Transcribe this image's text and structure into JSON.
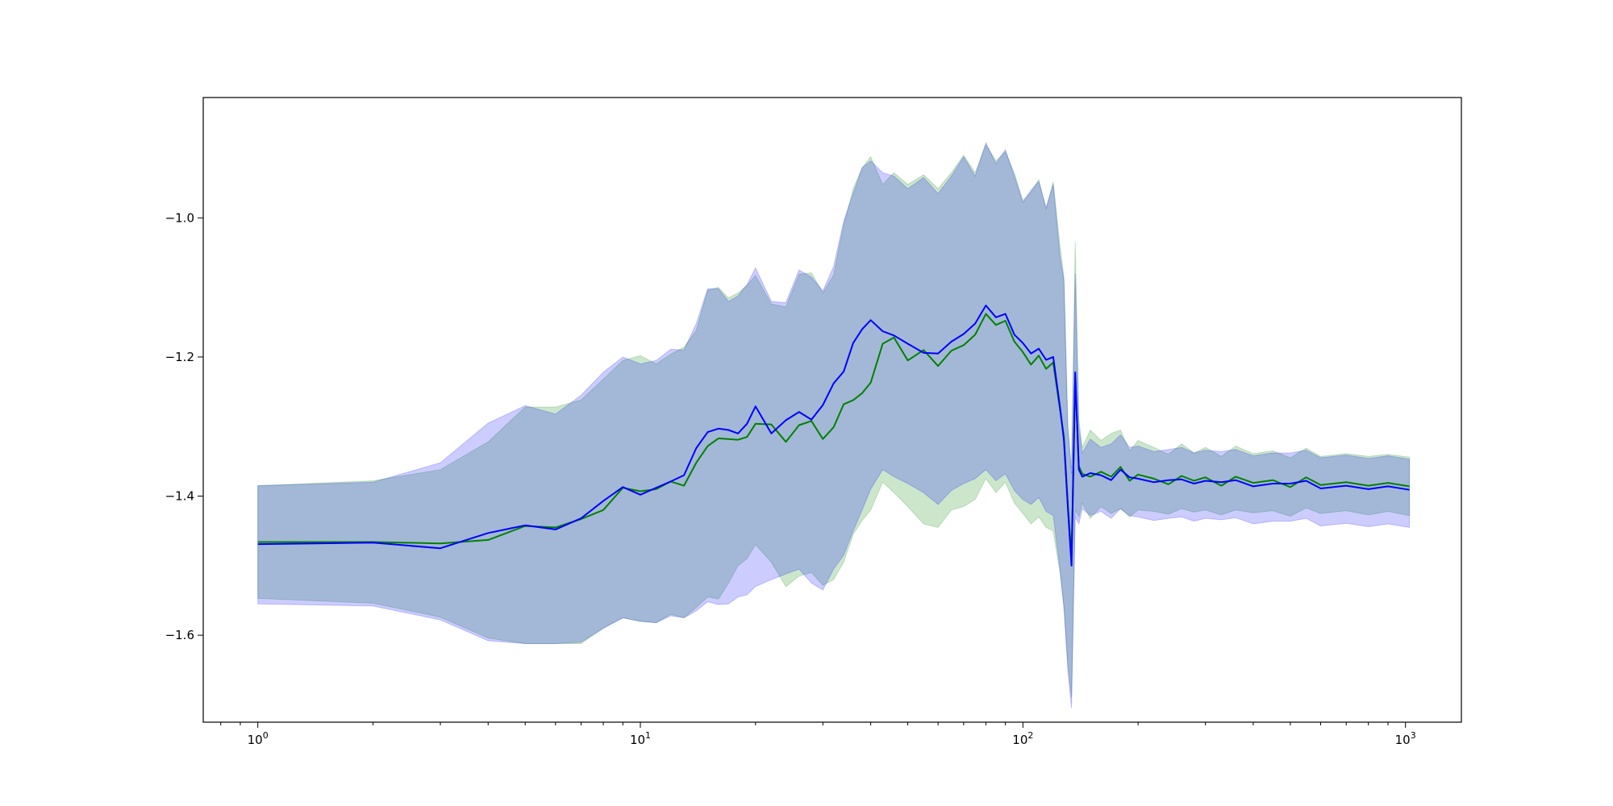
{
  "chart_data": {
    "type": "area",
    "title": "",
    "xlabel": "",
    "ylabel": "",
    "xscale": "log",
    "xlim": [
      0.72,
      1400
    ],
    "ylim": [
      -1.725,
      -0.827
    ],
    "grid": false,
    "legend": "none",
    "x_ticks": [
      {
        "value": 1,
        "base": "10",
        "exp": "0"
      },
      {
        "value": 10,
        "base": "10",
        "exp": "1"
      },
      {
        "value": 100,
        "base": "10",
        "exp": "2"
      },
      {
        "value": 1000,
        "base": "10",
        "exp": "3"
      }
    ],
    "y_ticks": [
      {
        "value": -1.0,
        "label": "−1.0"
      },
      {
        "value": -1.2,
        "label": "−1.2"
      },
      {
        "value": -1.4,
        "label": "−1.4"
      },
      {
        "value": -1.6,
        "label": "−1.6"
      }
    ],
    "series": [
      {
        "color": "#008000",
        "band_color": "#008000",
        "band_opacity": 0.2,
        "x": [
          1,
          2,
          3,
          4,
          5,
          6,
          7,
          8,
          9,
          10,
          11,
          12,
          13,
          14,
          15,
          16,
          17,
          18,
          19,
          20,
          22,
          24,
          26,
          28,
          30,
          32,
          34,
          36,
          38,
          40,
          43,
          46,
          50,
          55,
          60,
          65,
          70,
          75,
          80,
          85,
          90,
          95,
          100,
          105,
          110,
          115,
          120,
          125,
          128,
          131,
          134,
          137,
          140,
          143,
          150,
          160,
          170,
          180,
          190,
          200,
          220,
          240,
          260,
          280,
          300,
          330,
          360,
          400,
          450,
          500,
          550,
          600,
          700,
          800,
          900,
          1024
        ],
        "mean": [
          -1.466,
          -1.466,
          -1.468,
          -1.463,
          -1.443,
          -1.445,
          -1.433,
          -1.42,
          -1.388,
          -1.393,
          -1.39,
          -1.379,
          -1.385,
          -1.352,
          -1.328,
          -1.317,
          -1.318,
          -1.319,
          -1.315,
          -1.296,
          -1.297,
          -1.322,
          -1.298,
          -1.292,
          -1.318,
          -1.301,
          -1.268,
          -1.262,
          -1.252,
          -1.237,
          -1.181,
          -1.172,
          -1.205,
          -1.19,
          -1.213,
          -1.191,
          -1.183,
          -1.168,
          -1.138,
          -1.154,
          -1.148,
          -1.178,
          -1.193,
          -1.211,
          -1.198,
          -1.217,
          -1.208,
          -1.275,
          -1.315,
          -1.412,
          -1.488,
          -1.23,
          -1.357,
          -1.368,
          -1.372,
          -1.365,
          -1.372,
          -1.358,
          -1.378,
          -1.369,
          -1.375,
          -1.383,
          -1.371,
          -1.378,
          -1.373,
          -1.385,
          -1.372,
          -1.381,
          -1.377,
          -1.387,
          -1.373,
          -1.384,
          -1.38,
          -1.385,
          -1.381,
          -1.386
        ],
        "upper": [
          -1.385,
          -1.378,
          -1.362,
          -1.322,
          -1.272,
          -1.272,
          -1.262,
          -1.232,
          -1.205,
          -1.198,
          -1.21,
          -1.196,
          -1.186,
          -1.162,
          -1.104,
          -1.1,
          -1.115,
          -1.108,
          -1.097,
          -1.083,
          -1.124,
          -1.128,
          -1.081,
          -1.079,
          -1.108,
          -1.082,
          -1.01,
          -0.958,
          -0.928,
          -0.912,
          -0.952,
          -0.935,
          -0.952,
          -0.938,
          -0.958,
          -0.935,
          -0.91,
          -0.935,
          -0.895,
          -0.918,
          -0.905,
          -0.936,
          -0.975,
          -0.963,
          -0.945,
          -0.988,
          -0.948,
          -1.04,
          -1.085,
          -1.3,
          -1.36,
          -1.035,
          -1.29,
          -1.33,
          -1.305,
          -1.32,
          -1.31,
          -1.305,
          -1.335,
          -1.32,
          -1.33,
          -1.34,
          -1.325,
          -1.338,
          -1.33,
          -1.343,
          -1.328,
          -1.339,
          -1.335,
          -1.345,
          -1.331,
          -1.343,
          -1.339,
          -1.343,
          -1.34,
          -1.344
        ],
        "lower": [
          -1.547,
          -1.554,
          -1.574,
          -1.604,
          -1.612,
          -1.612,
          -1.612,
          -1.59,
          -1.575,
          -1.58,
          -1.582,
          -1.57,
          -1.575,
          -1.56,
          -1.545,
          -1.548,
          -1.525,
          -1.5,
          -1.49,
          -1.47,
          -1.495,
          -1.53,
          -1.515,
          -1.51,
          -1.528,
          -1.52,
          -1.495,
          -1.455,
          -1.435,
          -1.42,
          -1.38,
          -1.395,
          -1.415,
          -1.44,
          -1.445,
          -1.42,
          -1.415,
          -1.405,
          -1.375,
          -1.395,
          -1.38,
          -1.41,
          -1.425,
          -1.44,
          -1.43,
          -1.445,
          -1.45,
          -1.51,
          -1.56,
          -1.64,
          -1.69,
          -1.42,
          -1.43,
          -1.41,
          -1.432,
          -1.415,
          -1.425,
          -1.418,
          -1.43,
          -1.42,
          -1.422,
          -1.426,
          -1.418,
          -1.423,
          -1.42,
          -1.427,
          -1.42,
          -1.424,
          -1.421,
          -1.429,
          -1.417,
          -1.425,
          -1.421,
          -1.427,
          -1.422,
          -1.428
        ]
      },
      {
        "color": "#0000ff",
        "band_color": "#0000ff",
        "band_opacity": 0.2,
        "x": [
          1,
          2,
          3,
          4,
          5,
          6,
          7,
          8,
          9,
          10,
          11,
          12,
          13,
          14,
          15,
          16,
          17,
          18,
          19,
          20,
          22,
          24,
          26,
          28,
          30,
          32,
          34,
          36,
          38,
          40,
          43,
          46,
          50,
          55,
          60,
          65,
          70,
          75,
          80,
          85,
          90,
          95,
          100,
          105,
          110,
          115,
          120,
          125,
          128,
          131,
          134,
          137,
          140,
          143,
          150,
          160,
          170,
          180,
          190,
          200,
          220,
          240,
          260,
          280,
          300,
          330,
          360,
          400,
          450,
          500,
          550,
          600,
          700,
          800,
          900,
          1024
        ],
        "mean": [
          -1.469,
          -1.467,
          -1.475,
          -1.453,
          -1.442,
          -1.448,
          -1.432,
          -1.407,
          -1.387,
          -1.398,
          -1.388,
          -1.379,
          -1.37,
          -1.331,
          -1.308,
          -1.303,
          -1.305,
          -1.31,
          -1.296,
          -1.271,
          -1.31,
          -1.291,
          -1.279,
          -1.29,
          -1.269,
          -1.238,
          -1.221,
          -1.18,
          -1.16,
          -1.147,
          -1.163,
          -1.169,
          -1.181,
          -1.194,
          -1.195,
          -1.178,
          -1.167,
          -1.152,
          -1.126,
          -1.143,
          -1.138,
          -1.168,
          -1.18,
          -1.195,
          -1.188,
          -1.204,
          -1.2,
          -1.272,
          -1.32,
          -1.415,
          -1.5,
          -1.222,
          -1.362,
          -1.372,
          -1.367,
          -1.37,
          -1.377,
          -1.362,
          -1.373,
          -1.375,
          -1.38,
          -1.377,
          -1.376,
          -1.382,
          -1.378,
          -1.38,
          -1.377,
          -1.386,
          -1.382,
          -1.382,
          -1.378,
          -1.389,
          -1.385,
          -1.39,
          -1.386,
          -1.391
        ],
        "upper": [
          -1.385,
          -1.38,
          -1.352,
          -1.295,
          -1.27,
          -1.282,
          -1.255,
          -1.222,
          -1.2,
          -1.21,
          -1.205,
          -1.189,
          -1.19,
          -1.152,
          -1.102,
          -1.102,
          -1.12,
          -1.112,
          -1.096,
          -1.072,
          -1.12,
          -1.122,
          -1.075,
          -1.085,
          -1.105,
          -1.07,
          -1.005,
          -0.965,
          -0.928,
          -0.918,
          -0.935,
          -0.94,
          -0.958,
          -0.942,
          -0.965,
          -0.94,
          -0.912,
          -0.94,
          -0.892,
          -0.922,
          -0.902,
          -0.94,
          -0.978,
          -0.96,
          -0.948,
          -0.985,
          -0.952,
          -1.055,
          -1.09,
          -1.3,
          -1.368,
          -1.08,
          -1.3,
          -1.338,
          -1.318,
          -1.33,
          -1.325,
          -1.312,
          -1.33,
          -1.328,
          -1.336,
          -1.333,
          -1.33,
          -1.338,
          -1.334,
          -1.336,
          -1.333,
          -1.342,
          -1.338,
          -1.338,
          -1.334,
          -1.345,
          -1.341,
          -1.346,
          -1.342,
          -1.347
        ],
        "lower": [
          -1.555,
          -1.558,
          -1.578,
          -1.608,
          -1.612,
          -1.612,
          -1.61,
          -1.59,
          -1.575,
          -1.58,
          -1.582,
          -1.572,
          -1.575,
          -1.565,
          -1.552,
          -1.556,
          -1.555,
          -1.545,
          -1.542,
          -1.53,
          -1.52,
          -1.512,
          -1.505,
          -1.525,
          -1.535,
          -1.505,
          -1.485,
          -1.45,
          -1.42,
          -1.39,
          -1.362,
          -1.372,
          -1.382,
          -1.395,
          -1.412,
          -1.392,
          -1.382,
          -1.375,
          -1.362,
          -1.378,
          -1.368,
          -1.392,
          -1.405,
          -1.412,
          -1.402,
          -1.422,
          -1.428,
          -1.505,
          -1.56,
          -1.65,
          -1.705,
          -1.43,
          -1.44,
          -1.418,
          -1.428,
          -1.422,
          -1.432,
          -1.418,
          -1.428,
          -1.43,
          -1.435,
          -1.432,
          -1.43,
          -1.436,
          -1.432,
          -1.434,
          -1.431,
          -1.44,
          -1.436,
          -1.436,
          -1.432,
          -1.443,
          -1.439,
          -1.444,
          -1.44,
          -1.445
        ]
      }
    ]
  }
}
